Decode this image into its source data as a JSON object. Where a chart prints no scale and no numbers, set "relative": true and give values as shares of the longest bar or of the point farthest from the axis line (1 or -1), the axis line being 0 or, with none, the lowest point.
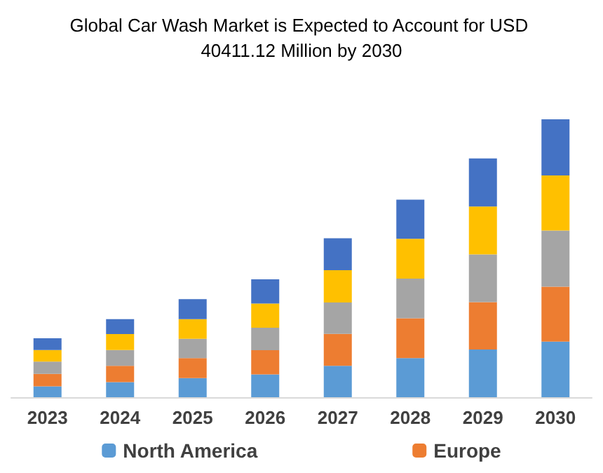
{
  "chart_data": {
    "type": "bar",
    "title": "Global Car Wash Market is Expected to Account for USD 40411.12 Million by 2030",
    "categories": [
      "2023",
      "2024",
      "2025",
      "2026",
      "2027",
      "2028",
      "2029",
      "2030"
    ],
    "stacked": true,
    "relative": true,
    "legend": "bottom",
    "series": [
      {
        "name": "North America",
        "color": "#5b9bd5",
        "values": [
          0.039,
          0.054,
          0.069,
          0.082,
          0.113,
          0.141,
          0.172,
          0.2
        ]
      },
      {
        "name": "Europe",
        "color": "#ed7d31",
        "values": [
          0.045,
          0.059,
          0.072,
          0.087,
          0.115,
          0.143,
          0.17,
          0.198
        ]
      },
      {
        "color": "#a5a5a5",
        "values": [
          0.044,
          0.057,
          0.069,
          0.081,
          0.113,
          0.143,
          0.172,
          0.202
        ]
      },
      {
        "color": "#ffc000",
        "values": [
          0.042,
          0.057,
          0.071,
          0.087,
          0.116,
          0.143,
          0.172,
          0.198
        ]
      },
      {
        "color": "#4472c4",
        "values": [
          0.042,
          0.054,
          0.072,
          0.087,
          0.115,
          0.141,
          0.173,
          0.202
        ]
      }
    ]
  }
}
